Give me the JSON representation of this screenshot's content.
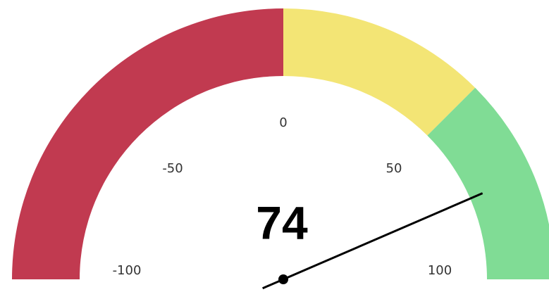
{
  "chart_data": {
    "type": "gauge",
    "value": 74,
    "ylim": [
      -100,
      100
    ],
    "yticks": [
      -100,
      -50,
      0,
      50,
      100
    ],
    "bands": [
      {
        "from": -100,
        "to": 0,
        "color": "#c13a50"
      },
      {
        "from": 0,
        "to": 50,
        "color": "#f3e575"
      },
      {
        "from": 50,
        "to": 100,
        "color": "#80dc95"
      }
    ],
    "needle_color": "#000000"
  }
}
